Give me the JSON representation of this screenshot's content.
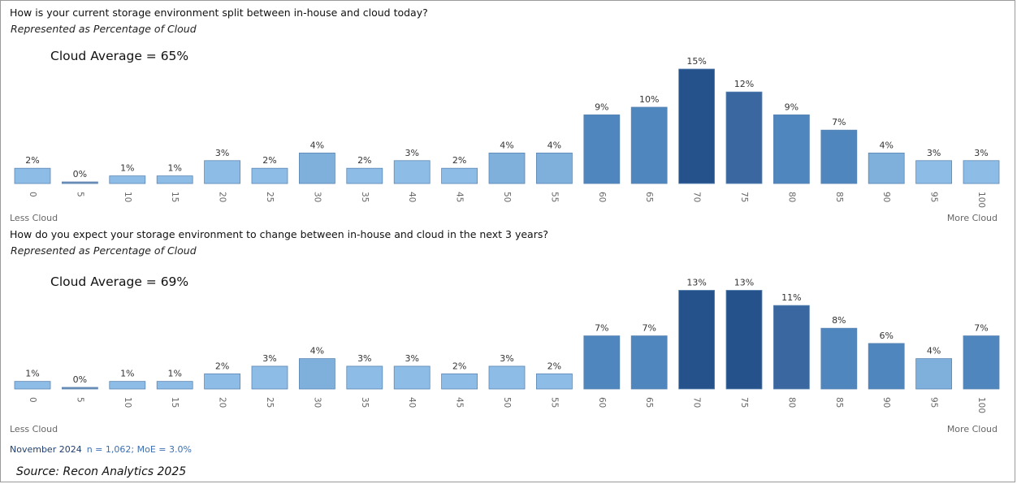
{
  "charts": {
    "top": {
      "title": "How is your current storage environment split between in-house and cloud today?",
      "subtitle": "Represented as Percentage of Cloud",
      "average": "Cloud Average = 65%",
      "left_label": "Less Cloud",
      "right_label": "More Cloud"
    },
    "bottom": {
      "title": "How do you expect your storage environment to change between in-house and cloud in the next 3 years?",
      "subtitle": "Represented as Percentage of Cloud",
      "average": "Cloud Average = 69%",
      "left_label": "Less Cloud",
      "right_label": "More Cloud"
    }
  },
  "footer": {
    "date": "November 2024",
    "sample": "n = 1,062; MoE = 3.0%",
    "source": "Source: Recon Analytics 2025"
  },
  "colors": {
    "light": "#8dbde6",
    "mid": "#7fb0dc",
    "medium": "#4f86bd",
    "dark_mid": "#3a679f",
    "dark": "#25528a"
  },
  "chart_data": [
    {
      "type": "bar",
      "title": "How is your current storage environment split between in-house and cloud today?",
      "subtitle": "Represented as Percentage of Cloud",
      "categories": [
        "0",
        "5",
        "10",
        "15",
        "20",
        "25",
        "30",
        "35",
        "40",
        "45",
        "50",
        "55",
        "60",
        "65",
        "70",
        "75",
        "80",
        "85",
        "90",
        "95",
        "100"
      ],
      "values": [
        2,
        0,
        1,
        1,
        3,
        2,
        4,
        2,
        3,
        2,
        4,
        4,
        9,
        10,
        15,
        12,
        9,
        7,
        4,
        3,
        3
      ],
      "labels": [
        "2%",
        "0%",
        "1%",
        "1%",
        "3%",
        "2%",
        "4%",
        "2%",
        "3%",
        "2%",
        "4%",
        "4%",
        "9%",
        "10%",
        "15%",
        "12%",
        "9%",
        "7%",
        "4%",
        "3%",
        "3%"
      ],
      "annotation": "Cloud Average = 65%",
      "axis_end_labels": [
        "Less Cloud",
        "More Cloud"
      ],
      "ylim": [
        0,
        15
      ],
      "grid": false
    },
    {
      "type": "bar",
      "title": "How do you expect your storage environment to change between in-house and cloud in the next 3 years?",
      "subtitle": "Represented as Percentage of Cloud",
      "categories": [
        "0",
        "5",
        "10",
        "15",
        "20",
        "25",
        "30",
        "35",
        "40",
        "45",
        "50",
        "55",
        "60",
        "65",
        "70",
        "75",
        "80",
        "85",
        "90",
        "95",
        "100"
      ],
      "values": [
        1,
        0,
        1,
        1,
        2,
        3,
        4,
        3,
        3,
        2,
        3,
        2,
        7,
        7,
        13,
        13,
        11,
        8,
        6,
        4,
        7
      ],
      "labels": [
        "1%",
        "0%",
        "1%",
        "1%",
        "2%",
        "3%",
        "4%",
        "3%",
        "3%",
        "2%",
        "3%",
        "2%",
        "7%",
        "7%",
        "13%",
        "13%",
        "11%",
        "8%",
        "6%",
        "4%",
        "7%"
      ],
      "annotation": "Cloud Average = 69%",
      "axis_end_labels": [
        "Less Cloud",
        "More Cloud"
      ],
      "ylim": [
        0,
        13
      ],
      "grid": false
    }
  ]
}
